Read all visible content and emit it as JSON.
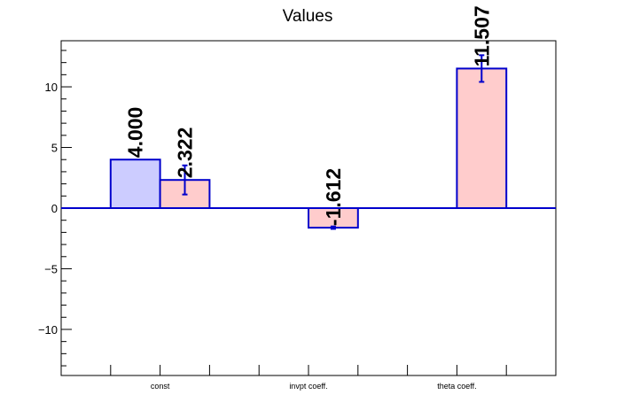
{
  "chart_data": {
    "type": "bar",
    "title": "Values",
    "xlabel": "",
    "ylabel": "",
    "categories": [
      "const",
      "invpt coeff.",
      "theta coeff."
    ],
    "ylim": [
      -13.8,
      13.8
    ],
    "yticks": [
      -10,
      -5,
      0,
      5,
      10
    ],
    "series": [
      {
        "color": "#ccccff",
        "edge_color": "#0000cc",
        "values": [
          4.0,
          null,
          null
        ],
        "errors": [
          null,
          null,
          null
        ],
        "labels": [
          "4.000",
          null,
          null
        ]
      },
      {
        "color": "#ffcccc",
        "edge_color": "#0000cc",
        "values": [
          2.322,
          -1.612,
          11.507
        ],
        "errors": [
          1.2,
          0.1,
          1.1
        ],
        "labels": [
          "2.322",
          "-1.612",
          "11.507"
        ]
      }
    ],
    "grid": false,
    "legend": "none"
  }
}
